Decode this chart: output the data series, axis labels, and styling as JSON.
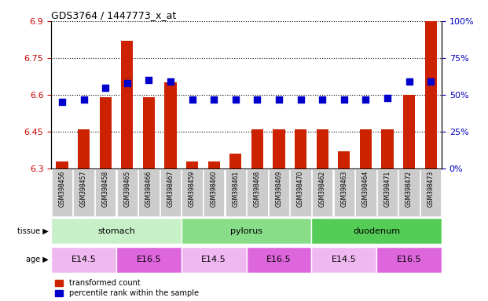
{
  "title": "GDS3764 / 1447773_x_at",
  "samples": [
    "GSM398456",
    "GSM398457",
    "GSM398458",
    "GSM398465",
    "GSM398466",
    "GSM398467",
    "GSM398459",
    "GSM398460",
    "GSM398461",
    "GSM398468",
    "GSM398469",
    "GSM398470",
    "GSM398462",
    "GSM398463",
    "GSM398464",
    "GSM398471",
    "GSM398472",
    "GSM398473"
  ],
  "red_values": [
    6.33,
    6.46,
    6.59,
    6.82,
    6.59,
    6.65,
    6.33,
    6.33,
    6.36,
    6.46,
    6.46,
    6.46,
    6.46,
    6.37,
    6.46,
    6.46,
    6.6,
    6.9
  ],
  "blue_values": [
    45,
    47,
    55,
    58,
    60,
    59,
    47,
    47,
    47,
    47,
    47,
    47,
    47,
    47,
    47,
    48,
    59,
    59
  ],
  "ylim_left": [
    6.3,
    6.9
  ],
  "ylim_right": [
    0,
    100
  ],
  "yticks_left": [
    6.3,
    6.45,
    6.6,
    6.75,
    6.9
  ],
  "ytick_labels_left": [
    "6.3",
    "6.45",
    "6.6",
    "6.75",
    "6.9"
  ],
  "yticks_right": [
    0,
    25,
    50,
    75,
    100
  ],
  "ytick_labels_right": [
    "0%",
    "25%",
    "50%",
    "75%",
    "100%"
  ],
  "tissue_groups": [
    {
      "label": "stomach",
      "start": 0,
      "end": 6,
      "color": "#c8f0c8"
    },
    {
      "label": "pylorus",
      "start": 6,
      "end": 12,
      "color": "#88dd88"
    },
    {
      "label": "duodenum",
      "start": 12,
      "end": 18,
      "color": "#55cc55"
    }
  ],
  "age_groups": [
    {
      "label": "E14.5",
      "start": 0,
      "end": 3,
      "color": "#f0b8f0"
    },
    {
      "label": "E16.5",
      "start": 3,
      "end": 6,
      "color": "#dd66dd"
    },
    {
      "label": "E14.5",
      "start": 6,
      "end": 9,
      "color": "#f0b8f0"
    },
    {
      "label": "E16.5",
      "start": 9,
      "end": 12,
      "color": "#dd66dd"
    },
    {
      "label": "E14.5",
      "start": 12,
      "end": 15,
      "color": "#f0b8f0"
    },
    {
      "label": "E16.5",
      "start": 15,
      "end": 18,
      "color": "#dd66dd"
    }
  ],
  "bar_color": "#cc2200",
  "dot_color": "#0000cc",
  "left_tick_color": "#cc0000",
  "right_tick_color": "#0000bb",
  "bar_width": 0.55,
  "dot_size": 28,
  "sample_box_color": "#cccccc",
  "sample_label_fontsize": 5.5,
  "tissue_fontsize": 8,
  "age_fontsize": 8
}
